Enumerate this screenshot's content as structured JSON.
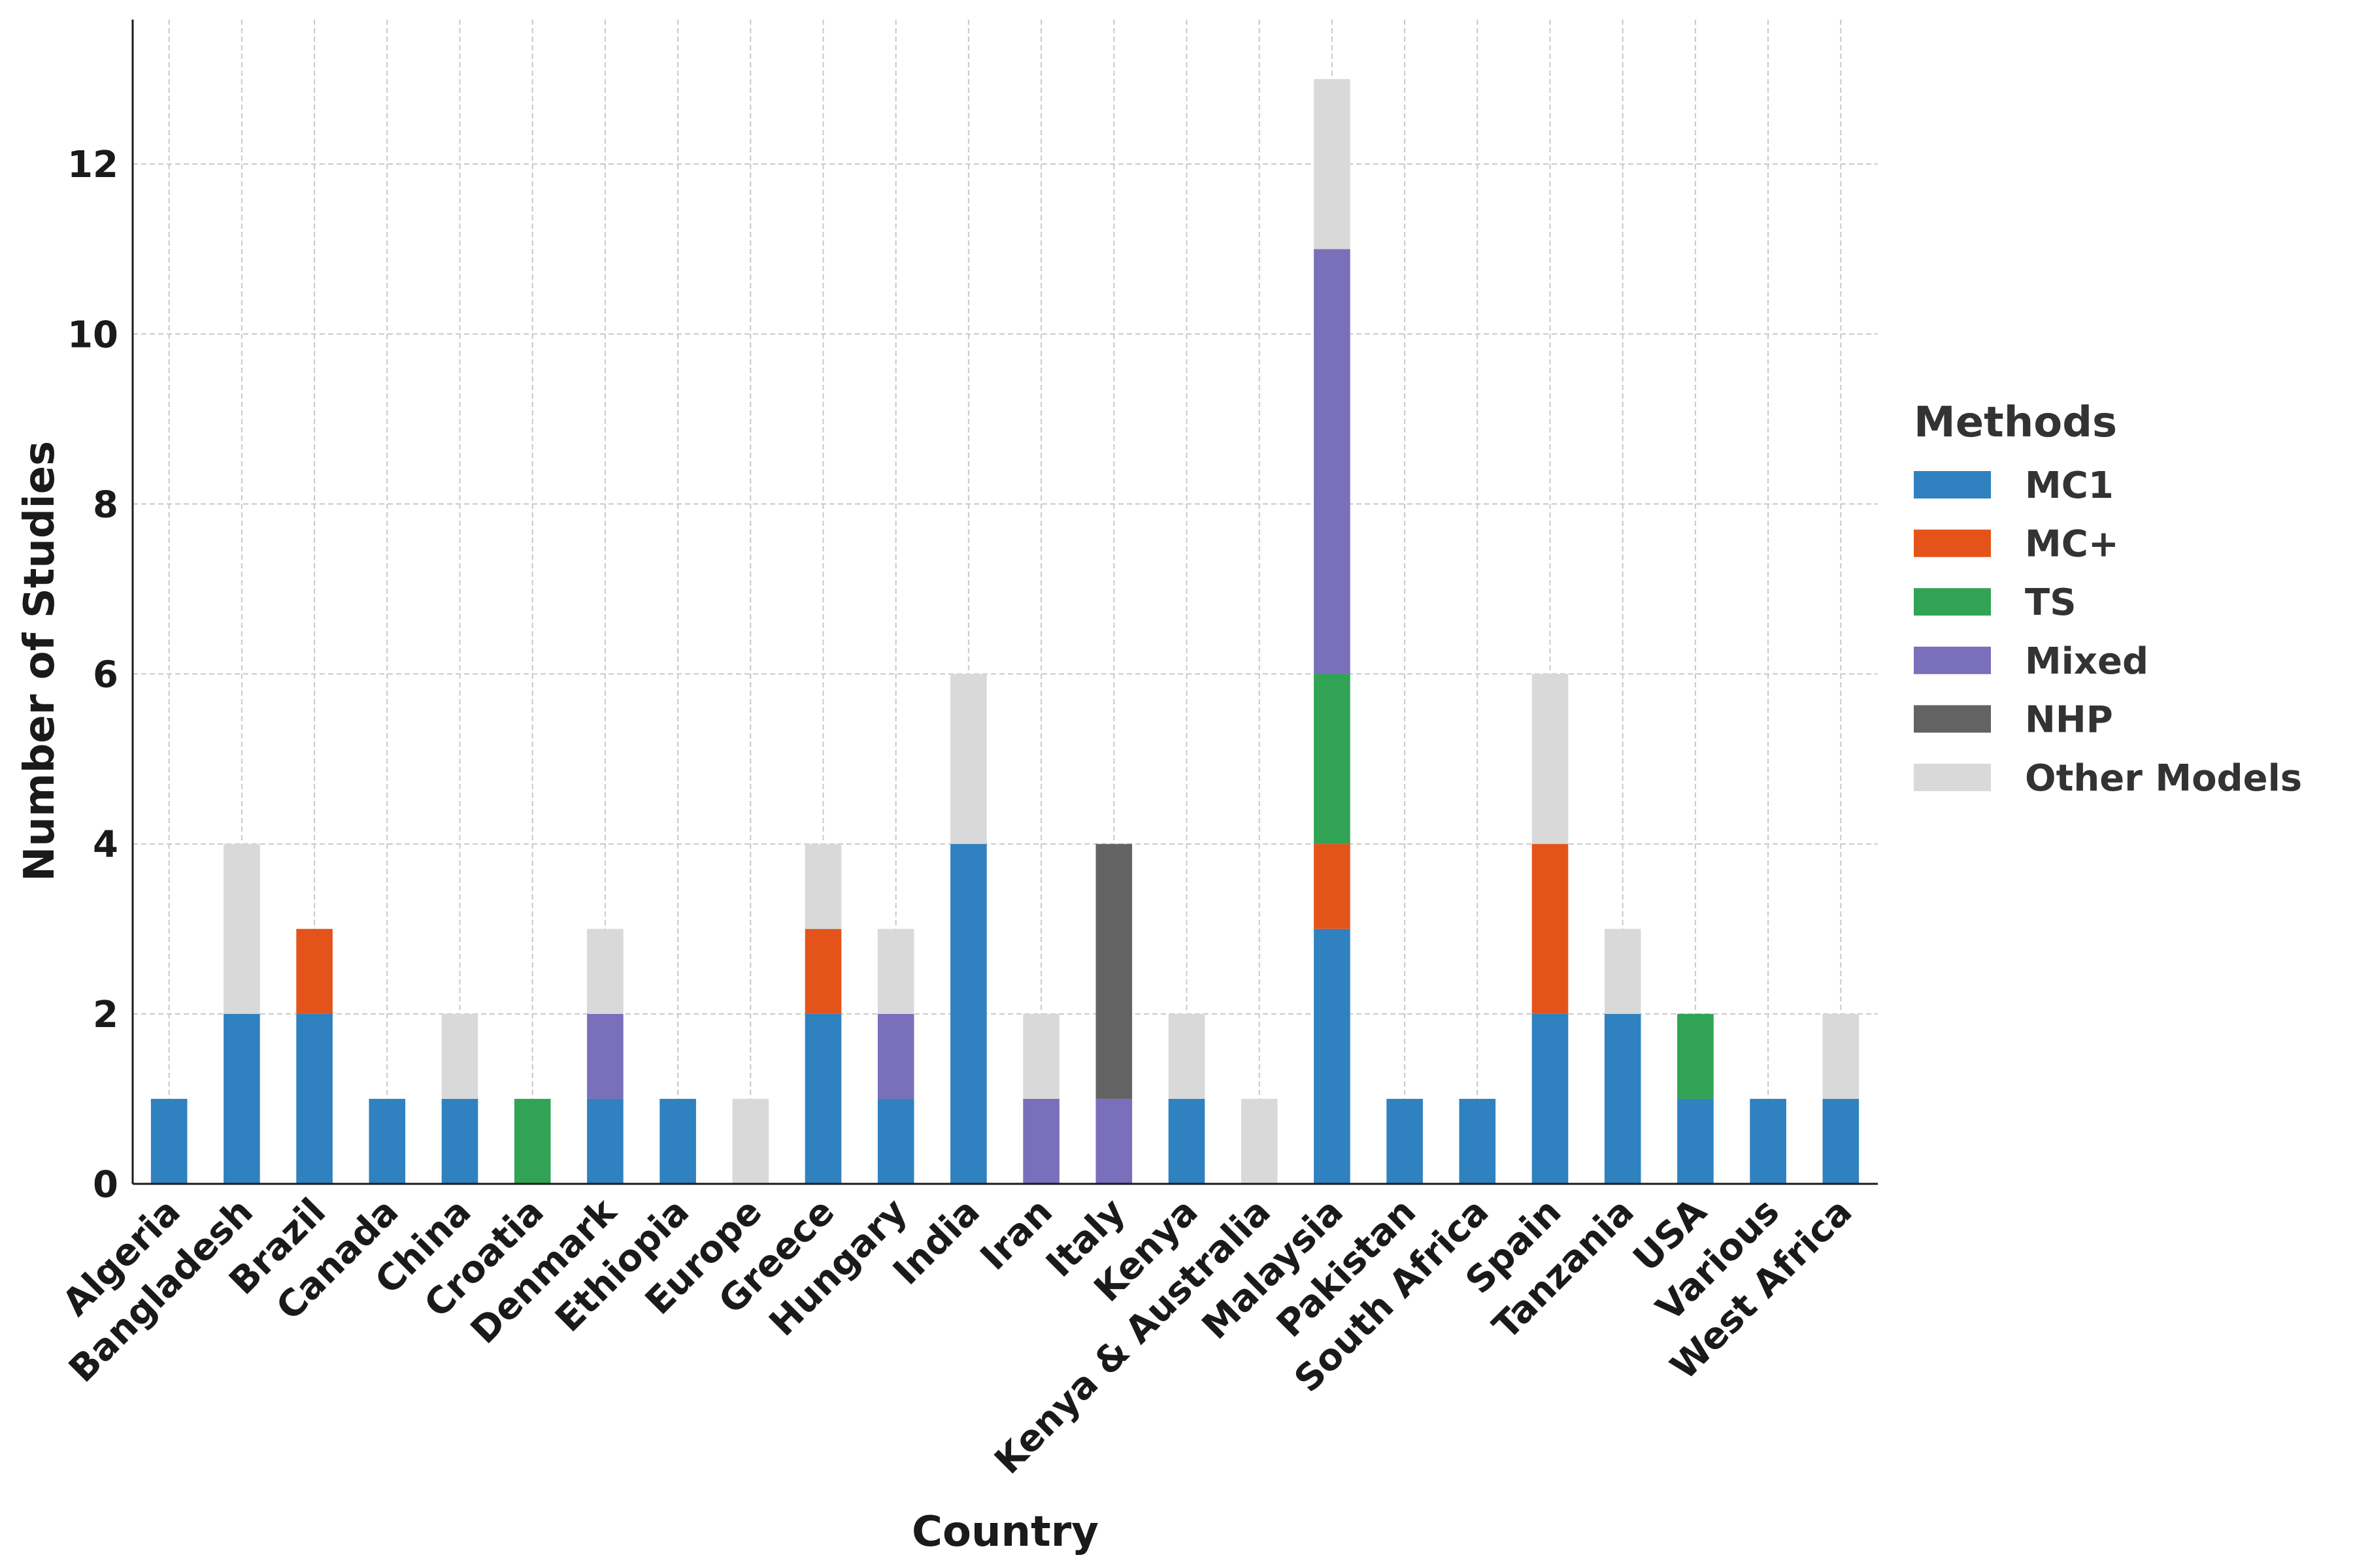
{
  "chart_data": {
    "type": "bar",
    "stacked": true,
    "title": "",
    "xlabel": "Country",
    "ylabel": "Number of Studies",
    "ylim": [
      0,
      13.7
    ],
    "yticks": [
      0,
      2,
      4,
      6,
      8,
      10,
      12
    ],
    "grid": true,
    "legend_title": "Methods",
    "legend_position": "right",
    "categories": [
      "Algeria",
      "Bangladesh",
      "Brazil",
      "Canada",
      "China",
      "Croatia",
      "Denmark",
      "Ethiopia",
      "Europe",
      "Greece",
      "Hungary",
      "India",
      "Iran",
      "Italy",
      "Kenya",
      "Kenya & Australia",
      "Malaysia",
      "Pakistan",
      "South Africa",
      "Spain",
      "Tanzania",
      "USA",
      "Various",
      "West Africa"
    ],
    "series": [
      {
        "name": "MC1",
        "color": "#2f81c0",
        "values": [
          1,
          2,
          2,
          1,
          1,
          0,
          1,
          1,
          0,
          2,
          1,
          4,
          0,
          0,
          1,
          0,
          3,
          1,
          1,
          2,
          2,
          1,
          1,
          1
        ]
      },
      {
        "name": "MC+",
        "color": "#e4541a",
        "values": [
          0,
          0,
          1,
          0,
          0,
          0,
          0,
          0,
          0,
          1,
          0,
          0,
          0,
          0,
          0,
          0,
          1,
          0,
          0,
          2,
          0,
          0,
          0,
          0
        ]
      },
      {
        "name": "TS",
        "color": "#31a354",
        "values": [
          0,
          0,
          0,
          0,
          0,
          1,
          0,
          0,
          0,
          0,
          0,
          0,
          0,
          0,
          0,
          0,
          2,
          0,
          0,
          0,
          0,
          1,
          0,
          0
        ]
      },
      {
        "name": "Mixed",
        "color": "#7a6fba",
        "values": [
          0,
          0,
          0,
          0,
          0,
          0,
          1,
          0,
          0,
          0,
          1,
          0,
          1,
          1,
          0,
          0,
          5,
          0,
          0,
          0,
          0,
          0,
          0,
          0
        ]
      },
      {
        "name": "NHP",
        "color": "#636363",
        "values": [
          0,
          0,
          0,
          0,
          0,
          0,
          0,
          0,
          0,
          0,
          0,
          0,
          0,
          3,
          0,
          0,
          0,
          0,
          0,
          0,
          0,
          0,
          0,
          0
        ]
      },
      {
        "name": "Other Models",
        "color": "#d9d9d9",
        "values": [
          0,
          2,
          0,
          0,
          1,
          0,
          1,
          0,
          1,
          1,
          1,
          2,
          1,
          0,
          1,
          1,
          2,
          0,
          0,
          2,
          1,
          0,
          0,
          1
        ]
      }
    ]
  }
}
